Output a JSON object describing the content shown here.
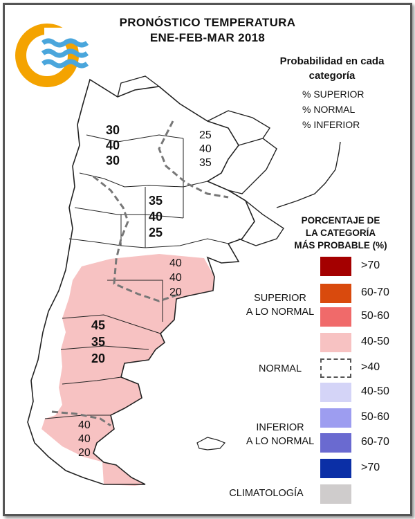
{
  "title_line1": "PRONÓSTICO TEMPERATURA",
  "title_line2": "ENE-FEB-MAR 2018",
  "probability_header": [
    "Probabilidad en cada",
    "categoría"
  ],
  "probability_items": [
    "% SUPERIOR",
    "% NORMAL",
    "% INFERIOR"
  ],
  "percent_header": [
    "PORCENTAJE DE",
    "LA CATEGORÍA",
    "MÁS PROBABLE (%)"
  ],
  "categories": {
    "superior": [
      "SUPERIOR",
      "A LO NORMAL"
    ],
    "normal": "NORMAL",
    "inferior": [
      "INFERIOR",
      "A LO NORMAL"
    ],
    "climatologia": "CLIMATOLOGÍA"
  },
  "legend": {
    "superior": [
      {
        "label": ">70",
        "color": "#a40000"
      },
      {
        "label": "60-70",
        "color": "#d94a0d"
      },
      {
        "label": "50-60",
        "color": "#f06a6a"
      },
      {
        "label": "40-50",
        "color": "#f7c2c2"
      }
    ],
    "normal": [
      {
        "label": ">40",
        "color": "#ffffff",
        "dashed": true
      }
    ],
    "inferior": [
      {
        "label": "40-50",
        "color": "#d4d4f7"
      },
      {
        "label": "50-60",
        "color": "#9d9df0"
      },
      {
        "label": "60-70",
        "color": "#6a6ad0"
      },
      {
        "label": ">70",
        "color": "#0b2fa6"
      }
    ],
    "climatologia": {
      "color": "#cfcccc"
    }
  },
  "map_labels": {
    "noa": [
      "30",
      "40",
      "30"
    ],
    "nea": [
      "25",
      "40",
      "35"
    ],
    "centro": [
      "35",
      "40",
      "25"
    ],
    "buenos_aires": [
      "40",
      "40",
      "20"
    ],
    "patagonia_norte": [
      "45",
      "35",
      "20"
    ],
    "patagonia_sur": [
      "40",
      "40",
      "20"
    ]
  },
  "colors": {
    "map_fill_superior": "#f7c2c2",
    "logo_orange": "#f4a300",
    "logo_blue": "#4aa6dc"
  }
}
